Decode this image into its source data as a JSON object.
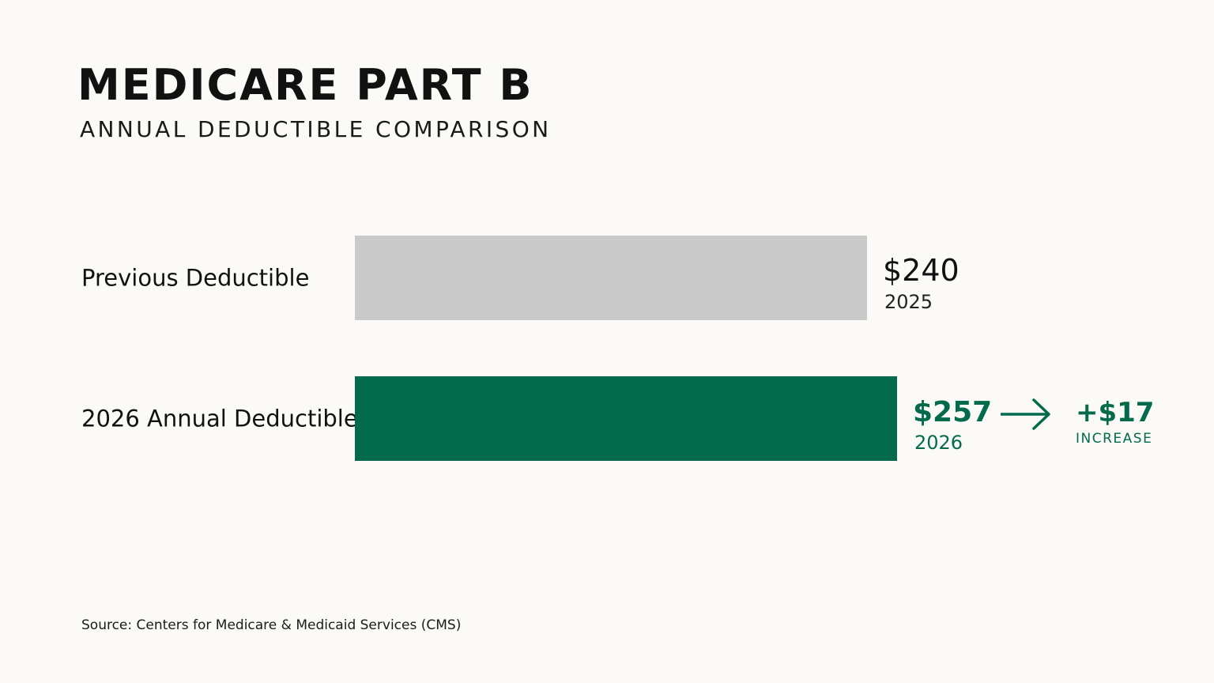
{
  "title": "MEDICARE PART B",
  "subtitle": "ANNUAL DEDUCTIBLE COMPARISON",
  "source": "Source: Centers for Medicare & Medicaid Services (CMS)",
  "colors": {
    "background": "#fbfaf7",
    "previous_bar": "#cacaca",
    "current_bar": "#036b4c",
    "accent": "#036b4c",
    "text": "#111111"
  },
  "chart_data": {
    "type": "bar",
    "orientation": "horizontal",
    "categories": [
      "Previous Deductible",
      "2026 Annual Deductible"
    ],
    "values": [
      240,
      257
    ],
    "value_labels": [
      "$240",
      "$257"
    ],
    "year_labels": [
      "2025",
      "2026"
    ],
    "change": {
      "label": "+$17",
      "caption": "INCREASE",
      "icon": "arrow-right-icon"
    },
    "xlim": [
      0,
      257
    ],
    "grid": false,
    "legend": "none"
  }
}
